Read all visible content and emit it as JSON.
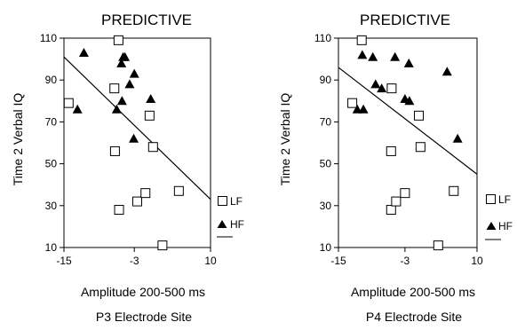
{
  "chart_data": [
    {
      "type": "scatter",
      "title": "PREDICTIVE",
      "xlabel": "Amplitude 200-500 ms",
      "ylabel": "Time 2 Verbal IQ",
      "caption": "P3 Electrode Site",
      "xlim": [
        -15,
        10
      ],
      "ylim": [
        10,
        110
      ],
      "x_ticks": [
        -15,
        -3,
        10
      ],
      "y_ticks": [
        10,
        30,
        50,
        70,
        90,
        110
      ],
      "grid": false,
      "legend_placement": "right",
      "series": [
        {
          "name": "LF",
          "marker": "open-square",
          "points": [
            [
              -14.2,
              79
            ],
            [
              -6.4,
              86
            ],
            [
              -6.3,
              56
            ],
            [
              -5.7,
              109
            ],
            [
              -5.6,
              28
            ],
            [
              -2.5,
              32
            ],
            [
              -1.1,
              36
            ],
            [
              -0.4,
              73
            ],
            [
              0.2,
              58
            ],
            [
              1.8,
              11
            ],
            [
              4.6,
              37
            ]
          ]
        },
        {
          "name": "HF",
          "marker": "filled-triangle",
          "points": [
            [
              -11.6,
              103
            ],
            [
              -12.7,
              76
            ],
            [
              -6.0,
              76
            ],
            [
              -5.2,
              98
            ],
            [
              -4.9,
              101
            ],
            [
              -4.6,
              101
            ],
            [
              -5.1,
              80
            ],
            [
              -3.8,
              88
            ],
            [
              -3.0,
              93
            ],
            [
              -3.1,
              62
            ],
            [
              -0.2,
              81
            ]
          ]
        }
      ],
      "fit_line": {
        "x": [
          -15,
          10
        ],
        "y": [
          101,
          33
        ]
      }
    },
    {
      "type": "scatter",
      "title": "PREDICTIVE",
      "xlabel": "Amplitude 200-500 ms",
      "ylabel": "Time 2 Verbal IQ",
      "caption": "P4 Electrode Site",
      "xlim": [
        -15,
        10
      ],
      "ylim": [
        10,
        110
      ],
      "x_ticks": [
        -15,
        -3,
        10
      ],
      "y_ticks": [
        10,
        30,
        50,
        70,
        90,
        110
      ],
      "grid": false,
      "legend_placement": "right",
      "series": [
        {
          "name": "LF",
          "marker": "open-square",
          "points": [
            [
              -12.5,
              79
            ],
            [
              -10.8,
              109
            ],
            [
              -5.4,
              86
            ],
            [
              -5.5,
              56
            ],
            [
              -5.5,
              28
            ],
            [
              -4.6,
              32
            ],
            [
              -3.0,
              36
            ],
            [
              -0.5,
              73
            ],
            [
              -0.2,
              58
            ],
            [
              3.0,
              11
            ],
            [
              5.8,
              37
            ]
          ]
        },
        {
          "name": "HF",
          "marker": "filled-triangle",
          "points": [
            [
              -10.7,
              102
            ],
            [
              -11.6,
              76
            ],
            [
              -10.5,
              76
            ],
            [
              -8.8,
              101
            ],
            [
              -8.3,
              88
            ],
            [
              -7.2,
              86
            ],
            [
              -4.8,
              101
            ],
            [
              -3.0,
              81
            ],
            [
              -2.2,
              80
            ],
            [
              -2.3,
              98
            ],
            [
              4.6,
              94
            ],
            [
              6.5,
              62
            ]
          ]
        }
      ],
      "fit_line": {
        "x": [
          -15,
          10
        ],
        "y": [
          96,
          45
        ]
      }
    }
  ]
}
